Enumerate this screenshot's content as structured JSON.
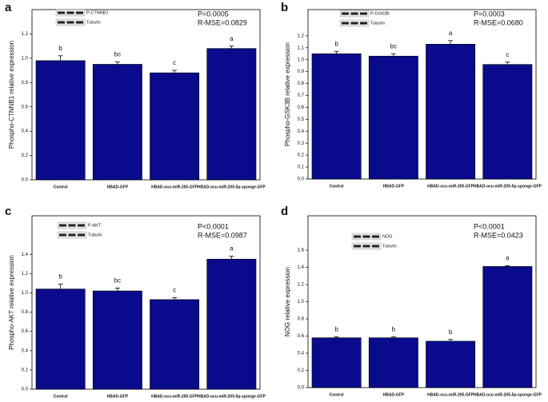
{
  "chart_data": [
    {
      "type": "bar",
      "label": "a",
      "ylabel": "Phospho-CTNNB1 relative expression",
      "blot": [
        "P-CTNNB1",
        "Tubulin"
      ],
      "stats": [
        "P=0.0005",
        "R-MSE=0.0829"
      ],
      "categories": [
        "Control",
        "HBAD-GFP",
        "HBAD-ocu-miR-205-GFP",
        "HBAD-ocu-miR-205-5p-sponge-GFP"
      ],
      "values": [
        0.98,
        0.95,
        0.88,
        1.08
      ],
      "errors": [
        0.04,
        0.02,
        0.02,
        0.02
      ],
      "letters": [
        "b",
        "bc",
        "c",
        "a"
      ],
      "color": "#0a0a8c",
      "ylim": [
        0,
        1.4
      ],
      "yticks": [
        {
          "value": 0,
          "label": "0.0"
        },
        0.2,
        0.4,
        0.6,
        0.8,
        {
          "value": 1,
          "label": "1.0"
        },
        1.2
      ]
    },
    {
      "type": "bar",
      "label": "b",
      "ylabel": "Phospho-GSK3B relative expression",
      "blot": [
        "P-GSK3B",
        "Tubulin"
      ],
      "stats": [
        "P=0.0003",
        "R-MSE=0.0680"
      ],
      "categories": [
        "Control",
        "HBAD-GFP",
        "HBAD-ocu-miR-205-GFP",
        "HBAD-ocu-miR-205-5p-sponge-GFP"
      ],
      "values": [
        1.05,
        1.03,
        1.13,
        0.96
      ],
      "errors": [
        0.02,
        0.02,
        0.03,
        0.02
      ],
      "letters": [
        "b",
        "bc",
        "a",
        "c"
      ],
      "color": "#0a0a8c",
      "ylim": [
        0,
        1.42
      ],
      "yticks": [
        {
          "value": 0,
          "label": "0.0"
        },
        0.1,
        0.2,
        0.3,
        0.4,
        0.5,
        0.6,
        0.7,
        0.8,
        0.9,
        {
          "value": 1,
          "label": "1.0"
        },
        1.1,
        1.2
      ]
    },
    {
      "type": "bar",
      "label": "c",
      "ylabel": "Phospho-AKT relative expression",
      "blot": [
        "P-AKT",
        "Tubulin"
      ],
      "stats": [
        "P<0.0001",
        "R-MSE=0.0987"
      ],
      "categories": [
        "Control",
        "HBAD-GFP",
        "HBAD-ocu-miR-205-GFP",
        "HBAD-ocu-miR-205-5p-sponge-GFP"
      ],
      "values": [
        1.04,
        1.02,
        0.93,
        1.35
      ],
      "errors": [
        0.05,
        0.03,
        0.02,
        0.03
      ],
      "letters": [
        "b",
        "bc",
        "c",
        "a"
      ],
      "color": "#0a0a8c",
      "ylim": [
        0,
        1.8
      ],
      "yticks": [
        {
          "value": 0,
          "label": "0.0"
        },
        0.2,
        0.4,
        0.6,
        0.8,
        {
          "value": 1,
          "label": "1.0"
        },
        1.2,
        1.4
      ]
    },
    {
      "type": "bar",
      "label": "d",
      "ylabel": "NOG relative expression",
      "blot": [
        "NOG",
        "Tubulin"
      ],
      "stats": [
        "P<0.0001",
        "R-MSE=0.0423"
      ],
      "categories": [
        "Control",
        "HBAD-GFP",
        "HBAD-ocu-miR-205-GFP",
        "HBAD-ocu-miR-205-5p-sponge-GFP"
      ],
      "values": [
        0.58,
        0.58,
        0.54,
        1.41
      ],
      "errors": [
        0.01,
        0.01,
        0.02,
        0.01
      ],
      "letters": [
        "b",
        "b",
        "b",
        "a"
      ],
      "color": "#0a0a8c",
      "ylim": [
        0,
        2.0
      ],
      "yticks": [
        {
          "value": 0,
          "label": "0.0"
        },
        0.2,
        0.4,
        0.6,
        0.8,
        {
          "value": 1,
          "label": "1.0"
        },
        1.2,
        1.4,
        1.6
      ]
    }
  ]
}
